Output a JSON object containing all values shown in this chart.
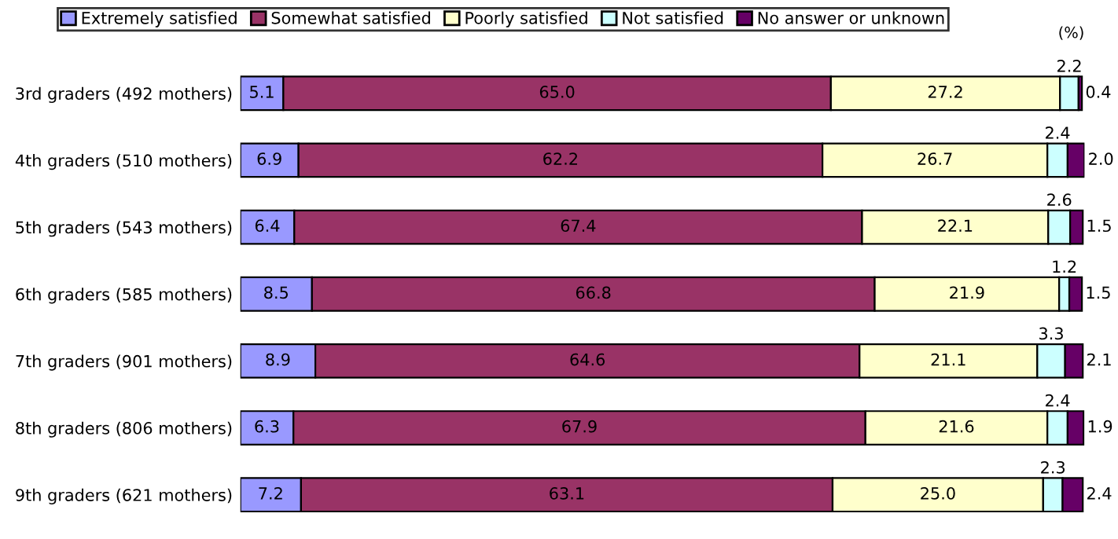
{
  "chart_data": {
    "type": "bar",
    "orientation": "horizontal",
    "stacked": true,
    "legend": "top",
    "grid": false,
    "categories": [
      "3rd graders (492 mothers)",
      "4th graders (510 mothers)",
      "5th graders (543 mothers)",
      "6th graders (585 mothers)",
      "7th graders (901 mothers)",
      "8th graders (806 mothers)",
      "9th graders (621 mothers)"
    ],
    "series": [
      {
        "name": "Extremely satisfied",
        "color": "#9999ff",
        "values": [
          5.1,
          6.9,
          6.4,
          8.5,
          8.9,
          6.3,
          7.2
        ],
        "value_labels": [
          "5.1",
          "6.9",
          "6.4",
          "8.5",
          "8.9",
          "6.3",
          "7.2"
        ]
      },
      {
        "name": "Somewhat satisfied",
        "color": "#993366",
        "values": [
          65.0,
          62.2,
          67.4,
          66.8,
          64.6,
          67.9,
          63.1
        ],
        "value_labels": [
          "65.0",
          "62.2",
          "67.4",
          "66.8",
          "64.6",
          "67.9",
          "63.1"
        ]
      },
      {
        "name": "Poorly satisfied",
        "color": "#ffffcc",
        "values": [
          27.2,
          26.7,
          22.1,
          21.9,
          21.1,
          21.6,
          25.0
        ],
        "value_labels": [
          "27.2",
          "26.7",
          "22.1",
          "21.9",
          "21.1",
          "21.6",
          "25.0"
        ]
      },
      {
        "name": "Not satisfied",
        "color": "#ccffff",
        "values": [
          2.2,
          2.4,
          2.6,
          1.2,
          3.3,
          2.4,
          2.3
        ],
        "value_labels": [
          "2.2",
          "2.4",
          "2.6",
          "1.2",
          "3.3",
          "2.4",
          "2.3"
        ]
      },
      {
        "name": "No answer or unknown",
        "color": "#660066",
        "values": [
          0.4,
          2.0,
          1.5,
          1.5,
          2.1,
          1.9,
          2.4
        ],
        "value_labels": [
          "0.4",
          "2.0",
          "1.5",
          "1.5",
          "2.1",
          "1.9",
          "2.4"
        ]
      }
    ],
    "annotations": [
      "(%)"
    ]
  }
}
